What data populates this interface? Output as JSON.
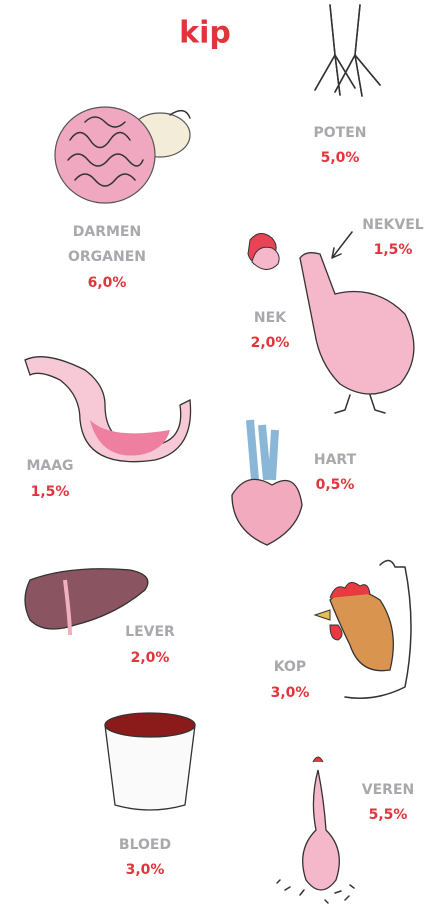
{
  "title": "kip",
  "items": [
    {
      "label": [
        "POTEN"
      ],
      "value": "5,0%"
    },
    {
      "label": [
        "DARMEN",
        "ORGANEN"
      ],
      "value": "6,0%"
    },
    {
      "label": [
        "NEKVEL"
      ],
      "value": "1,5%"
    },
    {
      "label": [
        "NEK"
      ],
      "value": "2,0%"
    },
    {
      "label": [
        "MAAG"
      ],
      "value": "1,5%"
    },
    {
      "label": [
        "HART"
      ],
      "value": "0,5%"
    },
    {
      "label": [
        "LEVER"
      ],
      "value": "2,0%"
    },
    {
      "label": [
        "KOP"
      ],
      "value": "3,0%"
    },
    {
      "label": [
        "BLOED"
      ],
      "value": "3,0%"
    },
    {
      "label": [
        "VEREN"
      ],
      "value": "5,5%"
    }
  ]
}
